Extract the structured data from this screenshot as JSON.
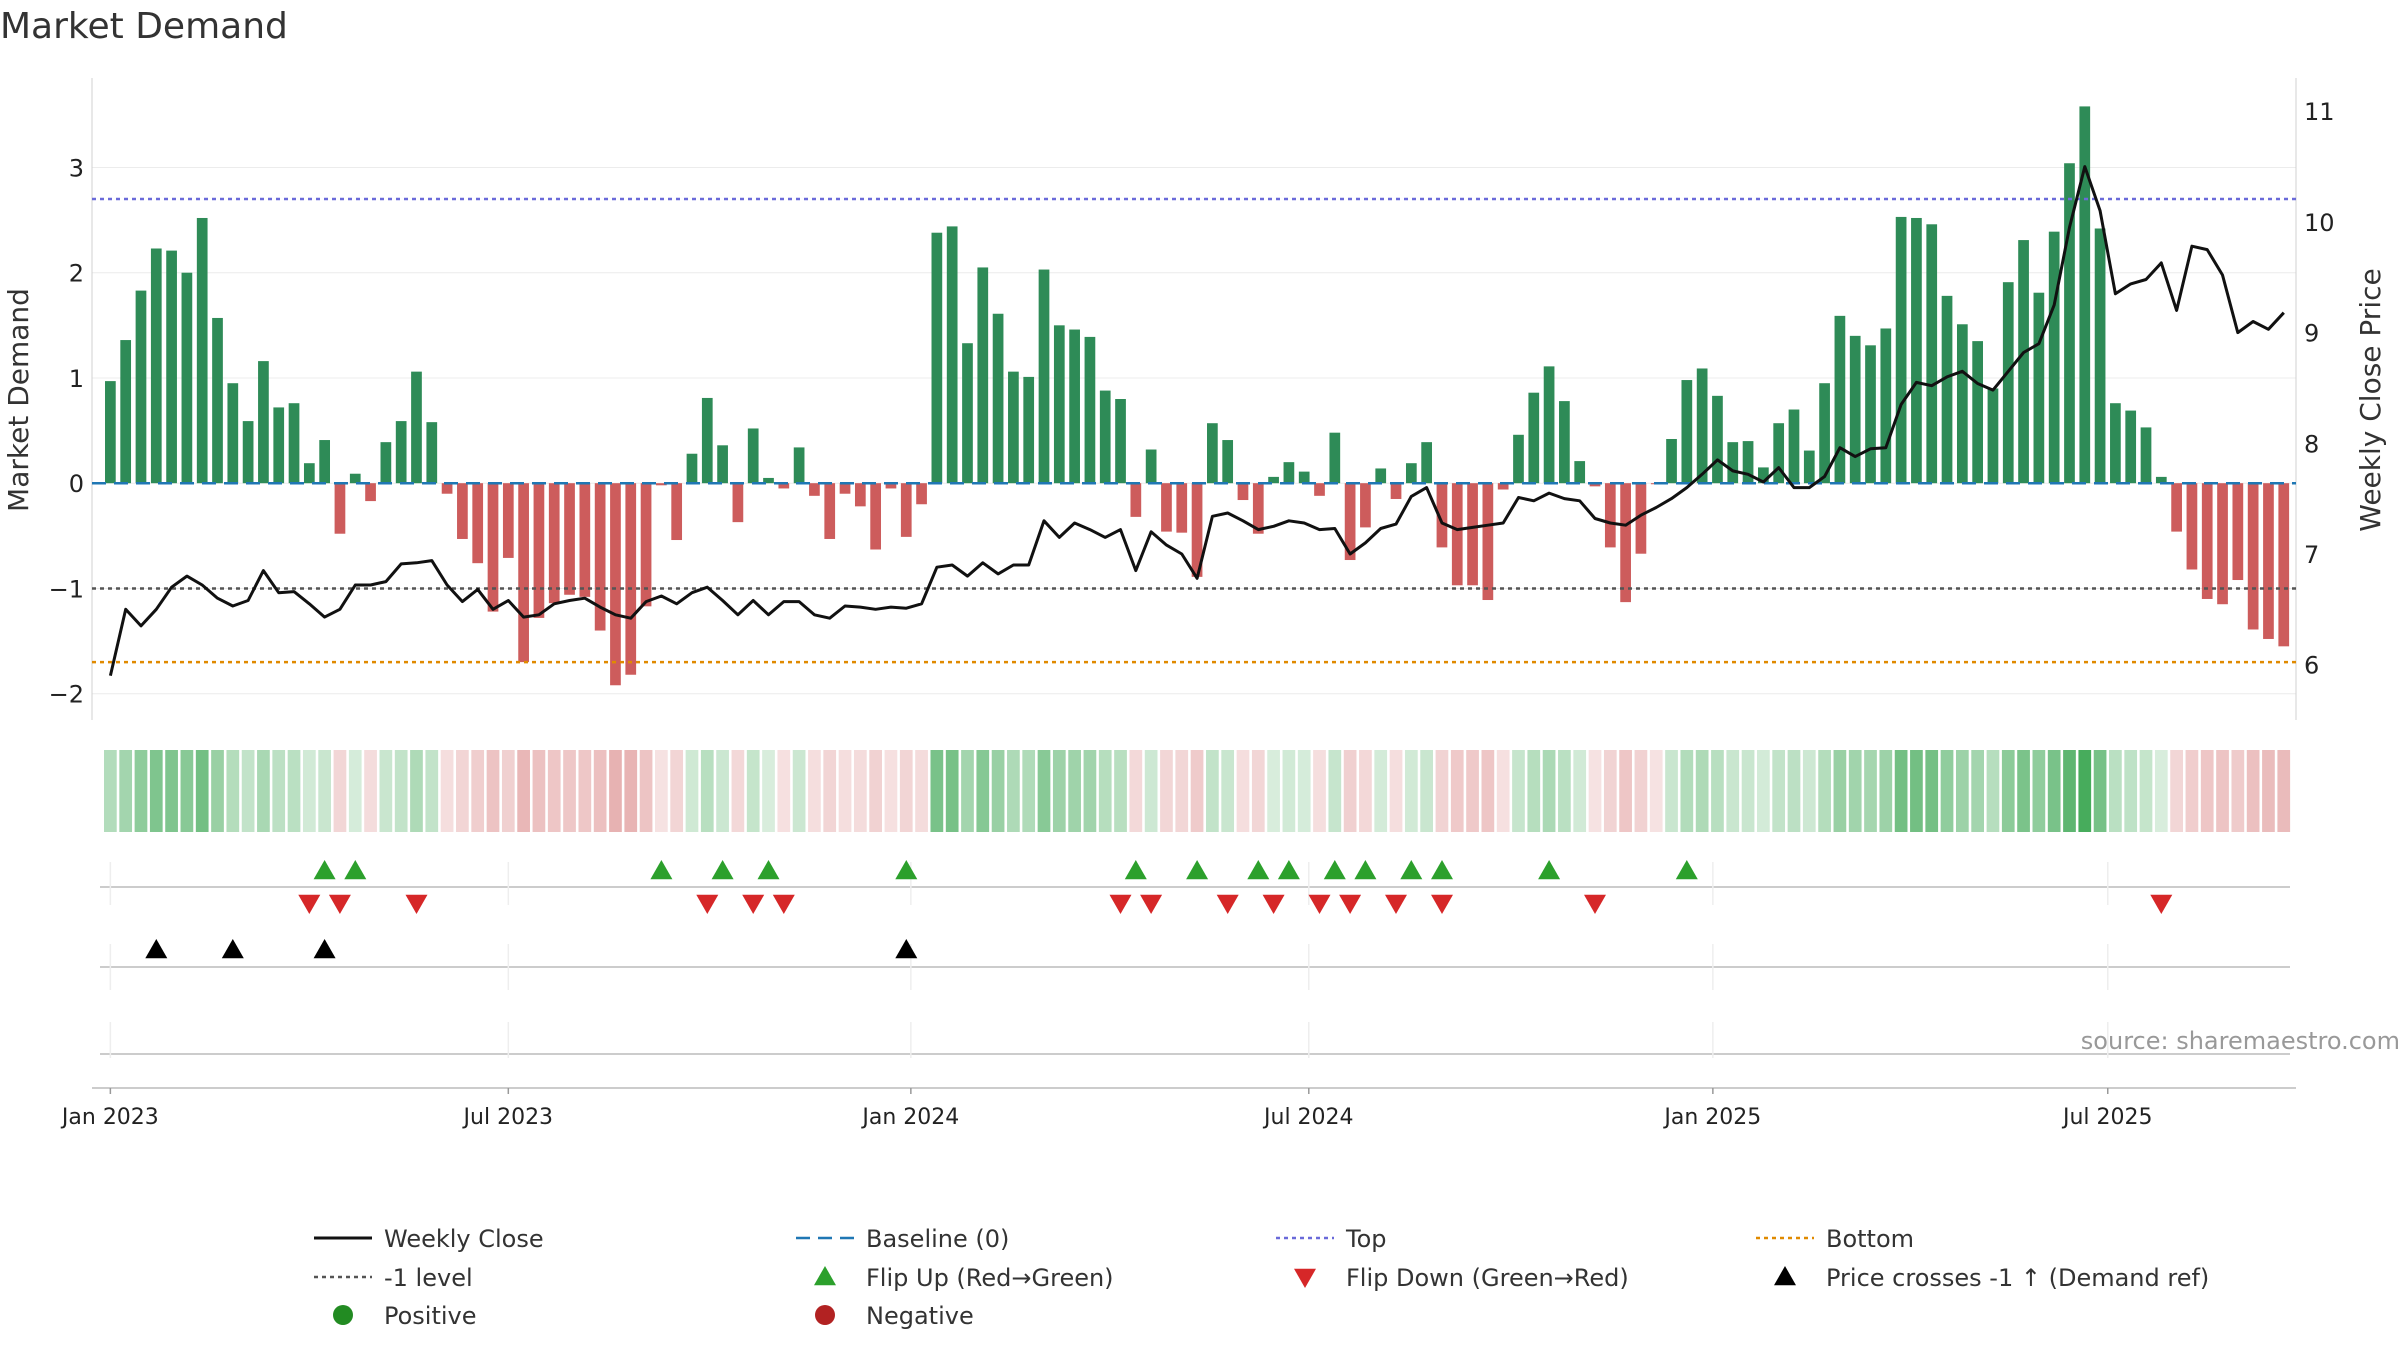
{
  "chart_data": {
    "type": "bar",
    "title": "Market Demand",
    "ylabel": "Market Demand",
    "y2label": "Weekly Close Price",
    "ylim": [
      -2.25,
      3.85
    ],
    "y2lim": [
      5.5,
      11.3
    ],
    "yticks": [
      -2,
      -1,
      0,
      1,
      2,
      3
    ],
    "ytick_labels": [
      "−2",
      "−1",
      "0",
      "1",
      "2",
      "3"
    ],
    "y2ticks": [
      6,
      7,
      8,
      9,
      10,
      11
    ],
    "y2tick_labels": [
      "6",
      "7",
      "8",
      "9",
      "10",
      "11"
    ],
    "x_start_week_offset": -1.2,
    "x_weeks_total": 144,
    "xticks": [
      {
        "label": "Jan 2023",
        "week": 0
      },
      {
        "label": "Jul 2023",
        "week": 26
      },
      {
        "label": "Jan 2024",
        "week": 52.3
      },
      {
        "label": "Jul 2024",
        "week": 78.3
      },
      {
        "label": "Jan 2025",
        "week": 104.7
      },
      {
        "label": "Jul 2025",
        "week": 130.5
      }
    ],
    "levels": {
      "baseline": 0,
      "top": 2.7,
      "bottom": -1.7,
      "minus_one": -1
    },
    "demand": [
      0.97,
      1.36,
      1.83,
      2.23,
      2.21,
      2.0,
      2.52,
      1.57,
      0.95,
      0.59,
      1.16,
      0.72,
      0.76,
      0.19,
      0.41,
      -0.48,
      0.09,
      -0.17,
      0.39,
      0.59,
      1.06,
      0.58,
      -0.1,
      -0.53,
      -0.76,
      -1.22,
      -0.71,
      -1.7,
      -1.28,
      -1.14,
      -1.06,
      -1.08,
      -1.4,
      -1.92,
      -1.82,
      -1.17,
      -0.02,
      -0.54,
      0.28,
      0.81,
      0.36,
      -0.37,
      0.52,
      0.05,
      -0.05,
      0.34,
      -0.12,
      -0.53,
      -0.1,
      -0.22,
      -0.63,
      -0.05,
      -0.51,
      -0.2,
      2.38,
      2.44,
      1.33,
      2.05,
      1.61,
      1.06,
      1.01,
      2.03,
      1.5,
      1.46,
      1.39,
      0.88,
      0.8,
      -0.32,
      0.32,
      -0.46,
      -0.47,
      -0.89,
      0.57,
      0.41,
      -0.16,
      -0.48,
      0.06,
      0.2,
      0.11,
      -0.12,
      0.48,
      -0.73,
      -0.42,
      0.14,
      -0.15,
      0.19,
      0.39,
      -0.61,
      -0.97,
      -0.97,
      -1.11,
      -0.06,
      0.46,
      0.86,
      1.11,
      0.78,
      0.21,
      -0.03,
      -0.61,
      -1.13,
      -0.67,
      -0.01,
      0.42,
      0.98,
      1.09,
      0.83,
      0.39,
      0.4,
      0.15,
      0.57,
      0.7,
      0.31,
      0.95,
      1.59,
      1.4,
      1.31,
      1.47,
      2.53,
      2.52,
      2.46,
      1.78,
      1.51,
      1.35,
      0.9,
      1.91,
      2.31,
      1.81,
      2.39,
      3.04,
      3.58,
      2.42,
      0.76,
      0.69,
      0.53,
      0.06,
      -0.46,
      -0.82,
      -1.1,
      -1.15,
      -0.92,
      -1.39,
      -1.48,
      -1.55
    ],
    "weekly_close": [
      5.9,
      6.5,
      6.35,
      6.5,
      6.7,
      6.8,
      6.72,
      6.6,
      6.53,
      6.58,
      6.85,
      6.65,
      6.66,
      6.55,
      6.43,
      6.5,
      6.72,
      6.72,
      6.75,
      6.91,
      6.92,
      6.94,
      6.72,
      6.57,
      6.68,
      6.5,
      6.58,
      6.43,
      6.45,
      6.55,
      6.58,
      6.6,
      6.52,
      6.45,
      6.42,
      6.57,
      6.62,
      6.55,
      6.65,
      6.7,
      6.58,
      6.45,
      6.58,
      6.45,
      6.57,
      6.57,
      6.45,
      6.42,
      6.53,
      6.52,
      6.5,
      6.52,
      6.51,
      6.55,
      6.88,
      6.9,
      6.8,
      6.92,
      6.82,
      6.9,
      6.9,
      7.3,
      7.15,
      7.28,
      7.22,
      7.15,
      7.22,
      6.85,
      7.2,
      7.08,
      7.0,
      6.78,
      7.34,
      7.37,
      7.3,
      7.22,
      7.25,
      7.3,
      7.28,
      7.22,
      7.23,
      7.0,
      7.1,
      7.23,
      7.27,
      7.52,
      7.6,
      7.28,
      7.22,
      7.24,
      7.26,
      7.28,
      7.51,
      7.48,
      7.55,
      7.5,
      7.48,
      7.32,
      7.28,
      7.26,
      7.35,
      7.42,
      7.5,
      7.6,
      7.72,
      7.85,
      7.75,
      7.72,
      7.65,
      7.78,
      7.6,
      7.6,
      7.7,
      7.96,
      7.88,
      7.95,
      7.96,
      8.35,
      8.55,
      8.52,
      8.6,
      8.65,
      8.54,
      8.48,
      8.65,
      8.82,
      8.9,
      9.25,
      9.95,
      10.5,
      10.1,
      9.35,
      9.44,
      9.48,
      9.63,
      9.2,
      9.78,
      9.75,
      9.52,
      9.0,
      9.1,
      9.03,
      9.18
    ],
    "series": [
      {
        "name": "Weekly Close",
        "color": "#111111"
      },
      {
        "name": "Baseline (0)",
        "color": "#1f77b4"
      },
      {
        "name": "Top",
        "color": "#6a6ad9"
      },
      {
        "name": "Bottom",
        "color": "#e08a00"
      },
      {
        "name": "-1 level",
        "color": "#555555"
      },
      {
        "name": "Positive",
        "color": "#2e8b57"
      },
      {
        "name": "Negative",
        "color": "#cd5c5c"
      }
    ],
    "events": {
      "flip_up_weeks": [
        14,
        16,
        36,
        40,
        43,
        52,
        67,
        71,
        75,
        77,
        80,
        82,
        85,
        87,
        94,
        103
      ],
      "flip_down_weeks": [
        13,
        15,
        20,
        39,
        42,
        44,
        66,
        68,
        73,
        76,
        79,
        81,
        84,
        87,
        97,
        134
      ],
      "price_cross_weeks": [
        3,
        8,
        14,
        52
      ]
    },
    "legend": {
      "placement": "bottom",
      "items": [
        {
          "label": "Weekly Close",
          "symbol": "line-solid",
          "color": "#111111"
        },
        {
          "label": "Baseline (0)",
          "symbol": "line-dash",
          "color": "#1f77b4"
        },
        {
          "label": "Top",
          "symbol": "line-dot",
          "color": "#6a6ad9"
        },
        {
          "label": "Bottom",
          "symbol": "line-dot",
          "color": "#e08a00"
        },
        {
          "label": "-1 level",
          "symbol": "line-dot",
          "color": "#555555"
        },
        {
          "label": "Flip Up (Red→Green)",
          "symbol": "tri-up",
          "color": "#2ca02c"
        },
        {
          "label": "Flip Down (Green→Red)",
          "symbol": "tri-down",
          "color": "#d62728"
        },
        {
          "label": "Price crosses -1 ↑ (Demand ref)",
          "symbol": "tri-up",
          "color": "#000000"
        },
        {
          "label": "Positive",
          "symbol": "dot",
          "color": "#228b22"
        },
        {
          "label": "Negative",
          "symbol": "dot",
          "color": "#b22222"
        }
      ]
    },
    "source": "source: sharemaestro.com"
  }
}
